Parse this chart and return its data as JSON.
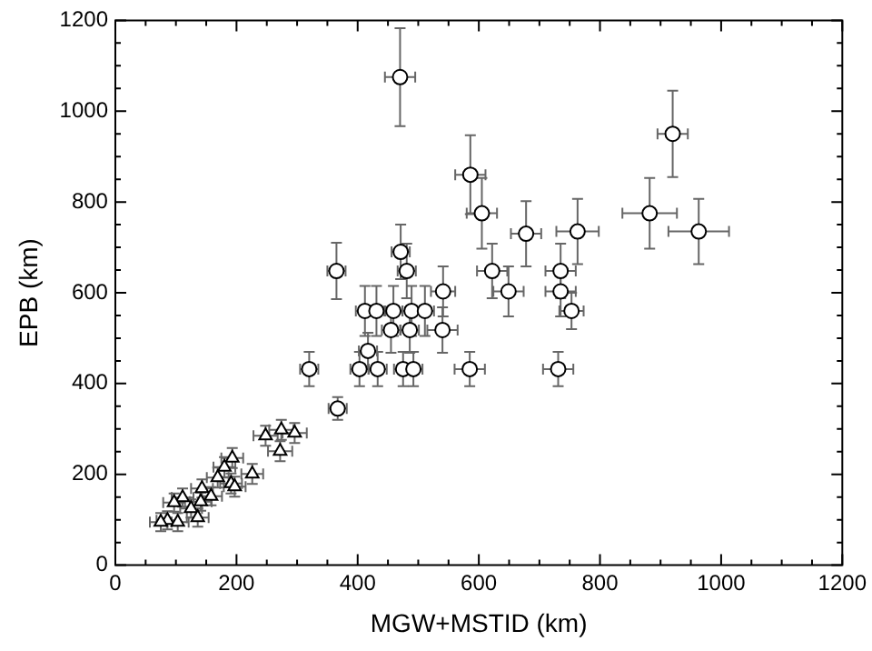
{
  "chart_data": {
    "type": "scatter",
    "xlabel": "MGW+MSTID (km)",
    "ylabel": "EPB (km)",
    "xlim": [
      0,
      1200
    ],
    "ylim": [
      0,
      1200
    ],
    "xticks": [
      0,
      200,
      400,
      600,
      800,
      1000,
      1200
    ],
    "yticks": [
      0,
      200,
      400,
      600,
      800,
      1000,
      1200
    ],
    "grid": false,
    "legend": false,
    "series": [
      {
        "color": "#000000",
        "marker": "circle",
        "x": [
          470,
          920,
          586,
          605,
          882,
          678,
          763,
          963,
          365,
          471,
          481,
          622,
          735,
          541,
          649,
          735,
          412,
          431,
          459,
          489,
          511,
          753,
          455,
          486,
          540,
          417,
          320,
          403,
          433,
          475,
          492,
          585,
          731,
          367
        ],
        "values": [
          1075,
          950,
          860,
          775,
          775,
          730,
          735,
          735,
          648,
          690,
          648,
          648,
          648,
          603,
          603,
          603,
          560,
          560,
          560,
          560,
          560,
          560,
          518,
          518,
          518,
          472,
          432,
          432,
          432,
          432,
          432,
          432,
          432,
          345
        ],
        "errors": [
          108,
          95,
          87,
          78,
          78,
          72,
          72,
          72,
          62,
          60,
          60,
          60,
          60,
          55,
          55,
          55,
          55,
          55,
          55,
          55,
          55,
          40,
          50,
          50,
          50,
          40,
          38,
          38,
          38,
          38,
          38,
          38,
          38,
          25
        ],
        "xerrors": [
          25,
          25,
          25,
          25,
          45,
          25,
          35,
          50,
          15,
          15,
          15,
          25,
          25,
          20,
          25,
          25,
          15,
          15,
          15,
          15,
          15,
          20,
          15,
          15,
          25,
          15,
          15,
          15,
          15,
          15,
          15,
          25,
          25,
          15
        ]
      },
      {
        "color": "#000000",
        "marker": "triangle",
        "x": [
          248,
          274,
          296,
          272,
          193,
          180,
          226,
          169,
          191,
          197,
          143,
          111,
          158,
          97,
          125,
          141,
          136,
          86,
          75,
          103
        ],
        "values": [
          285,
          298,
          291,
          251,
          236,
          216,
          201,
          193,
          180,
          173,
          169,
          149,
          152,
          138,
          125,
          140,
          105,
          99,
          95,
          95
        ],
        "errors": [
          22,
          22,
          22,
          22,
          22,
          22,
          22,
          22,
          22,
          22,
          20,
          20,
          20,
          20,
          20,
          20,
          20,
          20,
          20,
          20
        ],
        "xerrors": [
          20,
          20,
          20,
          20,
          18,
          18,
          18,
          18,
          18,
          18,
          18,
          18,
          18,
          18,
          18,
          18,
          18,
          18,
          18,
          18
        ]
      }
    ]
  }
}
